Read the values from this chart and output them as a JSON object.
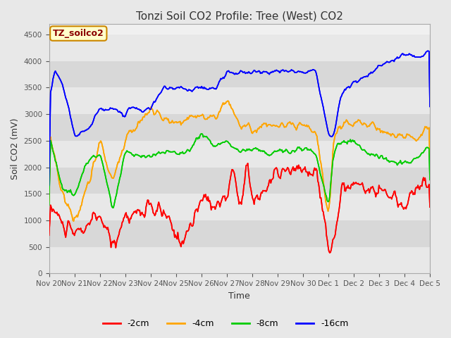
{
  "title": "Tonzi Soil CO2 Profile: Tree (West) CO2",
  "xlabel": "Time",
  "ylabel": "Soil CO2 (mV)",
  "ylim": [
    0,
    4700
  ],
  "yticks": [
    0,
    500,
    1000,
    1500,
    2000,
    2500,
    3000,
    3500,
    4000,
    4500
  ],
  "legend_label": "TZ_soilco2",
  "series_labels": [
    "-2cm",
    "-4cm",
    "-8cm",
    "-16cm"
  ],
  "series_colors": [
    "#ff0000",
    "#ffa500",
    "#00cc00",
    "#0000ff"
  ],
  "fig_bg_color": "#e8e8e8",
  "plot_bg_color": "#f0f0f0",
  "xtick_labels": [
    "Nov 20",
    "Nov 21",
    "Nov 22",
    "Nov 23",
    "Nov 24",
    "Nov 25",
    "Nov 26",
    "Nov 27",
    "Nov 28",
    "Nov 29",
    "Nov 30",
    "Dec 1",
    "Dec 2",
    "Dec 3",
    "Dec 4",
    "Dec 5"
  ],
  "line_width": 1.2
}
